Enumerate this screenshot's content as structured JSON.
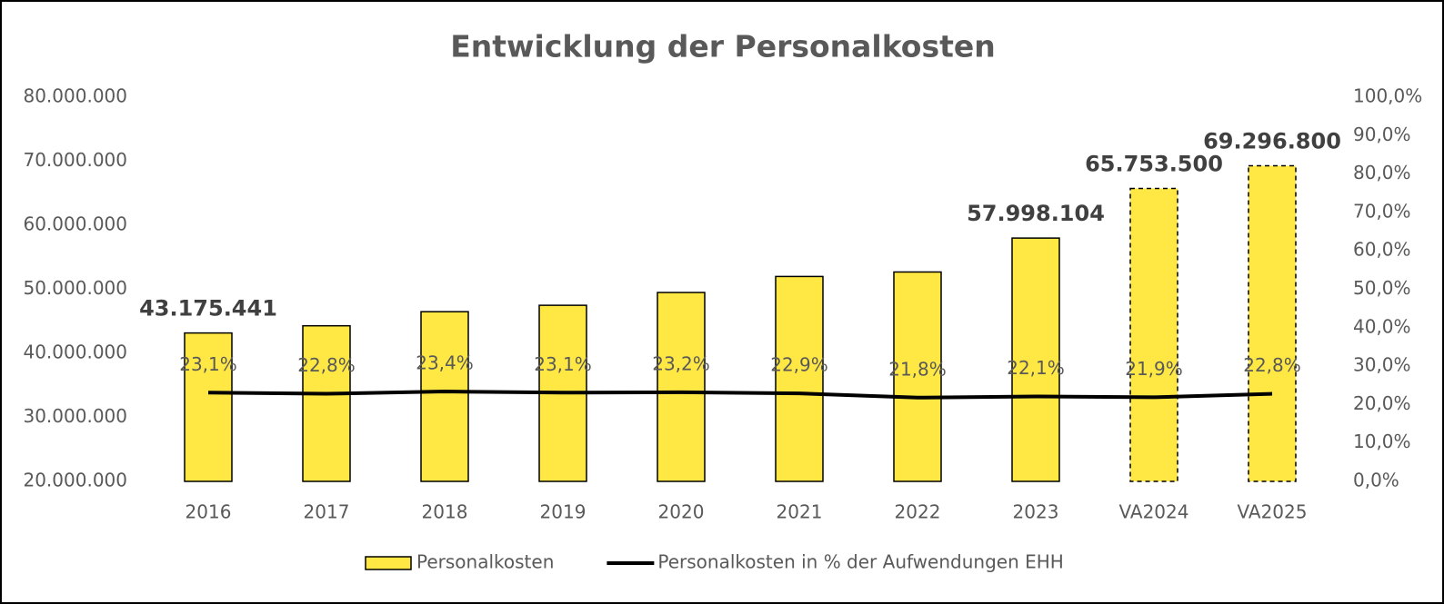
{
  "chart_data": {
    "type": "bar_line",
    "title": "Entwicklung der Personalkosten",
    "categories": [
      "2016",
      "2017",
      "2018",
      "2019",
      "2020",
      "2021",
      "2022",
      "2023",
      "VA2024",
      "VA2025"
    ],
    "series": [
      {
        "name": "Personalkosten",
        "type": "bar",
        "color": "#ffe843",
        "axis": "y",
        "values": [
          43175441,
          44300000,
          46500000,
          47500000,
          49500000,
          52000000,
          52700000,
          57998104,
          65753500,
          69296800
        ],
        "value_labels": [
          "43.175.441",
          null,
          null,
          null,
          null,
          null,
          null,
          "57.998.104",
          "65.753.500",
          "69.296.800"
        ],
        "dashed": [
          false,
          false,
          false,
          false,
          false,
          false,
          false,
          false,
          true,
          true
        ]
      },
      {
        "name": "Personalkosten in % der Aufwendungen EHH",
        "type": "line",
        "color": "#000000",
        "axis": "y2",
        "values": [
          23.1,
          22.8,
          23.4,
          23.1,
          23.2,
          22.9,
          21.8,
          22.1,
          21.9,
          22.8
        ],
        "value_labels": [
          "23,1%",
          "22,8%",
          "23,4%",
          "23,1%",
          "23,2%",
          "22,9%",
          "21,8%",
          "22,1%",
          "21,9%",
          "22,8%"
        ]
      }
    ],
    "ylim": [
      20000000,
      80000000
    ],
    "yticks": [
      {
        "value": 20000000,
        "label": "20.000.000"
      },
      {
        "value": 30000000,
        "label": "30.000.000"
      },
      {
        "value": 40000000,
        "label": "40.000.000"
      },
      {
        "value": 50000000,
        "label": "50.000.000"
      },
      {
        "value": 60000000,
        "label": "60.000.000"
      },
      {
        "value": 70000000,
        "label": "70.000.000"
      },
      {
        "value": 80000000,
        "label": "80.000.000"
      }
    ],
    "y2lim": [
      0,
      100
    ],
    "y2ticks": [
      {
        "value": 0,
        "label": "0,0%"
      },
      {
        "value": 10,
        "label": "10,0%"
      },
      {
        "value": 20,
        "label": "20,0%"
      },
      {
        "value": 30,
        "label": "30,0%"
      },
      {
        "value": 40,
        "label": "40,0%"
      },
      {
        "value": 50,
        "label": "50,0%"
      },
      {
        "value": 60,
        "label": "60,0%"
      },
      {
        "value": 70,
        "label": "70,0%"
      },
      {
        "value": 80,
        "label": "80,0%"
      },
      {
        "value": 90,
        "label": "90,0%"
      },
      {
        "value": 100,
        "label": "100,0%"
      }
    ],
    "grid": false,
    "legend": "bottom"
  }
}
